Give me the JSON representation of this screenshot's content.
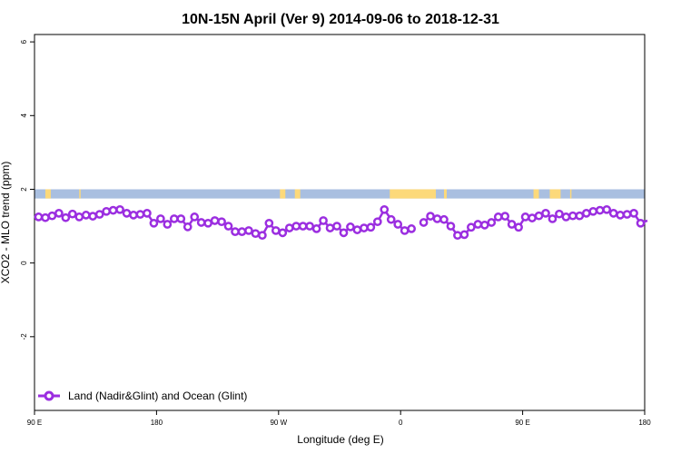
{
  "chart_data": {
    "type": "line",
    "title": "10N-15N April (Ver 9)   2014-09-06 to 2018-12-31",
    "xlabel": "Longitude (deg E)",
    "ylabel": "XCO2 - MLO trend (ppm)",
    "xlim": [
      90,
      450
    ],
    "ylim": [
      -4,
      6.2
    ],
    "x_ticks": [
      {
        "value": 90,
        "label": "90 E"
      },
      {
        "value": 180,
        "label": "180"
      },
      {
        "value": 270,
        "label": "90 W"
      },
      {
        "value": 360,
        "label": "0"
      },
      {
        "value": 450,
        "label": "90 E"
      },
      {
        "value": 540,
        "label": "180"
      }
    ],
    "y_ticks": [
      {
        "value": -2,
        "label": "-2"
      },
      {
        "value": 0,
        "label": "0"
      },
      {
        "value": 2,
        "label": "2"
      },
      {
        "value": 4,
        "label": "4"
      },
      {
        "value": 6,
        "label": "6"
      }
    ],
    "display_xlim": [
      90,
      540
    ],
    "grid": false,
    "legend_position": "bottom-left",
    "land_ocean_band": {
      "y_range": [
        1.75,
        2.0
      ],
      "ocean_color": "#a9bfe0",
      "land_color": "#fcd97a",
      "land_spans": [
        [
          98,
          102
        ],
        [
          123,
          124
        ],
        [
          271,
          275
        ],
        [
          282,
          286
        ],
        [
          352,
          386
        ],
        [
          392,
          394
        ],
        [
          458,
          462
        ],
        [
          470,
          478
        ],
        [
          485,
          486
        ]
      ]
    },
    "series": [
      {
        "name": "Land (Nadir&Glint) and Ocean (Glint)",
        "color": "#9b2ee0",
        "segments": [
          {
            "x": [
              93,
              98,
              103,
              108,
              113,
              118,
              123,
              128,
              133,
              138,
              143,
              148,
              153,
              158,
              163,
              168,
              173,
              178,
              183,
              188,
              193,
              198,
              203,
              208,
              213,
              218,
              223,
              228,
              233,
              238,
              243,
              248,
              253,
              258,
              263,
              268,
              273,
              278,
              283,
              288,
              293,
              298,
              303,
              308,
              313,
              318,
              323,
              328,
              333,
              338,
              343,
              348,
              353,
              358,
              363,
              368
            ],
            "y": [
              1.25,
              1.23,
              1.28,
              1.35,
              1.23,
              1.33,
              1.25,
              1.3,
              1.27,
              1.32,
              1.4,
              1.43,
              1.45,
              1.35,
              1.3,
              1.32,
              1.35,
              1.08,
              1.2,
              1.05,
              1.2,
              1.2,
              0.98,
              1.25,
              1.1,
              1.08,
              1.15,
              1.12,
              1.0,
              0.85,
              0.85,
              0.88,
              0.8,
              0.75,
              1.08,
              0.88,
              0.82,
              0.95,
              1.0,
              1.0,
              1.0,
              0.93,
              1.15,
              0.95,
              1.0,
              0.82,
              0.98,
              0.9,
              0.95,
              0.97,
              1.12,
              1.45,
              1.18,
              1.05,
              0.88,
              0.93
            ]
          },
          {
            "x": [
              377,
              382,
              387,
              392,
              397,
              402,
              407,
              412,
              417,
              422,
              427,
              432,
              437,
              442,
              447,
              452,
              457,
              462,
              467,
              472,
              477,
              482,
              487,
              492,
              497,
              502,
              507,
              512,
              517,
              522,
              527,
              532,
              537,
              542
            ],
            "y": [
              1.1,
              1.27,
              1.2,
              1.18,
              1.0,
              0.75,
              0.77,
              0.97,
              1.05,
              1.03,
              1.1,
              1.25,
              1.27,
              1.05,
              0.97,
              1.25,
              1.22,
              1.28,
              1.35,
              1.2,
              1.33,
              1.25,
              1.28,
              1.28,
              1.35,
              1.4,
              1.43,
              1.45,
              1.35,
              1.3,
              1.32,
              1.35,
              1.08,
              1.15
            ]
          }
        ]
      }
    ]
  }
}
